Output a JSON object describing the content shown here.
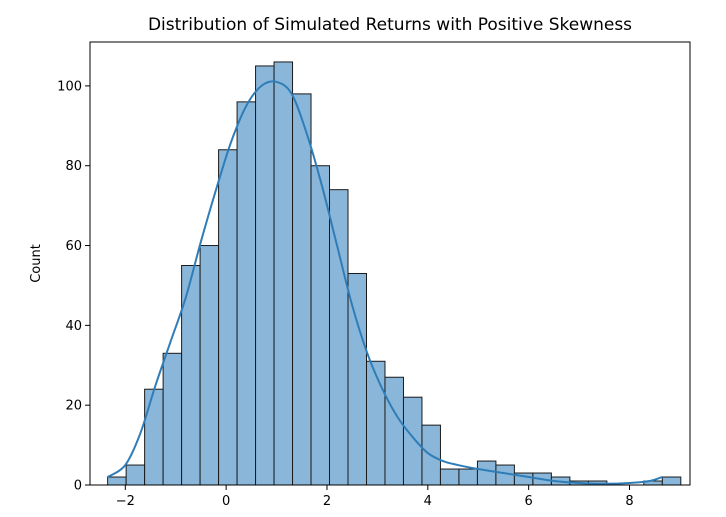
{
  "chart_data": {
    "type": "bar",
    "title": "Distribution of Simulated Returns with Positive Skewness",
    "xlabel": "",
    "ylabel": "Count",
    "xlim": [
      -2.7,
      9.2
    ],
    "ylim": [
      0,
      111
    ],
    "xticks": [
      -2,
      0,
      2,
      4,
      6,
      8
    ],
    "yticks": [
      0,
      20,
      40,
      60,
      80,
      100
    ],
    "bins": {
      "start": -2.35,
      "width": 0.3667
    },
    "values": [
      2,
      5,
      24,
      33,
      55,
      60,
      84,
      96,
      105,
      106,
      98,
      80,
      74,
      53,
      31,
      27,
      22,
      15,
      4,
      4,
      6,
      5,
      3,
      3,
      2,
      1,
      1,
      0,
      0,
      1,
      2
    ],
    "kde": {
      "x": [
        -2.35,
        -2.0,
        -1.7,
        -1.4,
        -1.1,
        -0.8,
        -0.5,
        -0.2,
        0.1,
        0.4,
        0.7,
        1.0,
        1.3,
        1.6,
        1.9,
        2.2,
        2.5,
        2.8,
        3.1,
        3.4,
        3.7,
        4.0,
        4.3,
        4.6,
        5.0,
        5.5,
        6.0,
        6.5,
        7.0,
        7.5,
        8.0,
        8.4,
        8.65
      ],
      "y": [
        2,
        5,
        13,
        25,
        36,
        47,
        61,
        74,
        86,
        95,
        100,
        101,
        98,
        88,
        75,
        60,
        45,
        33,
        24,
        17,
        12,
        8,
        6,
        5,
        4,
        3,
        2,
        1,
        0.5,
        0.3,
        0.5,
        1,
        2
      ]
    },
    "colors": {
      "bar_fill": "#8ab7d9",
      "bar_edge": "#1a1a1a",
      "kde_line": "#2f7db8"
    },
    "grid": false,
    "legend": "none"
  }
}
